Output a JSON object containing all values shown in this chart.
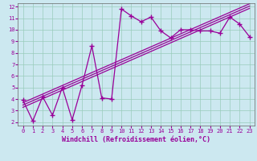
{
  "title": "",
  "xlabel": "Windchill (Refroidissement éolien,°C)",
  "ylabel": "",
  "bg_color": "#cce8f0",
  "line_color": "#990099",
  "xlim": [
    -0.5,
    23.5
  ],
  "ylim": [
    1.7,
    12.3
  ],
  "xticks": [
    0,
    1,
    2,
    3,
    4,
    5,
    6,
    7,
    8,
    9,
    10,
    11,
    12,
    13,
    14,
    15,
    16,
    17,
    18,
    19,
    20,
    21,
    22,
    23
  ],
  "yticks": [
    2,
    3,
    4,
    5,
    6,
    7,
    8,
    9,
    10,
    11,
    12
  ],
  "data_x": [
    0,
    1,
    2,
    3,
    4,
    5,
    6,
    7,
    8,
    9,
    10,
    11,
    12,
    13,
    14,
    15,
    16,
    17,
    18,
    19,
    20,
    21,
    22,
    23
  ],
  "data_y": [
    3.9,
    2.1,
    4.2,
    2.6,
    5.0,
    2.2,
    5.2,
    8.6,
    4.1,
    4.0,
    11.8,
    11.2,
    10.7,
    11.1,
    9.9,
    9.3,
    10.0,
    10.0,
    9.9,
    9.9,
    9.7,
    11.1,
    10.5,
    9.4
  ],
  "reg_offsets": [
    -0.2,
    0.0,
    0.2
  ],
  "grid_color": "#99ccbb",
  "xlabel_fontsize": 6,
  "tick_fontsize": 5
}
